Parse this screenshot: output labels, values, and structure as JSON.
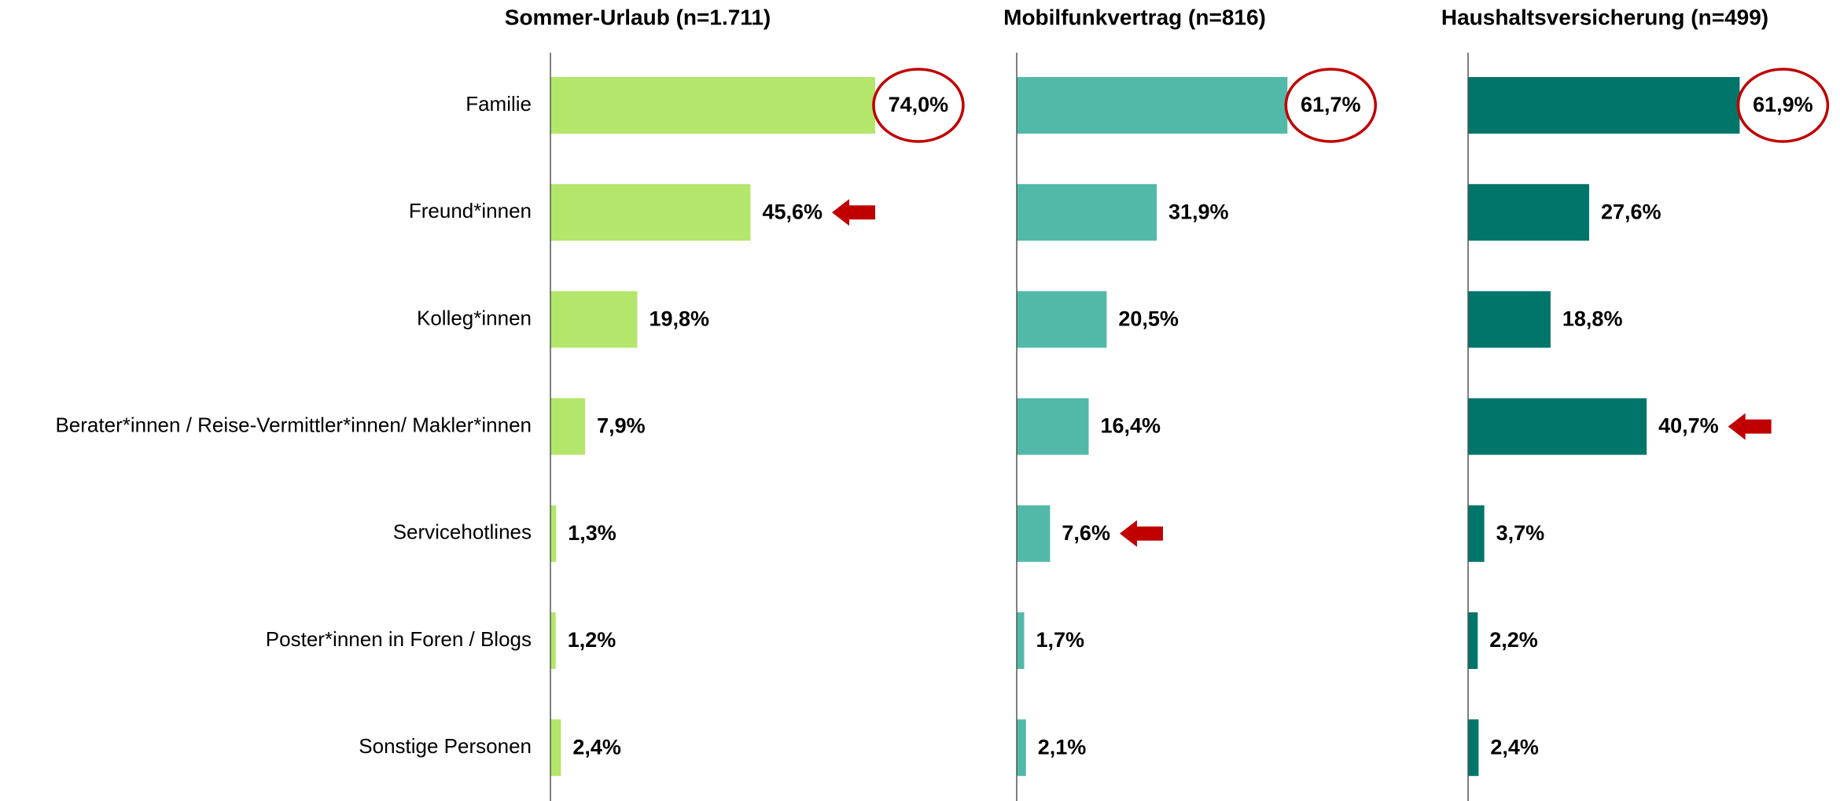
{
  "chart_data": [
    {
      "type": "hbar",
      "title": "Sommer-Urlaub (n=1.711)",
      "color": "#b3e66b",
      "categories": [
        "Familie",
        "Freund*innen",
        "Kolleg*innen",
        "Berater*innen / Reise-Vermittler*innen/ Makler*innen",
        "Servicehotlines",
        "Poster*innen in Foren / Blogs",
        "Sonstige Personen"
      ],
      "values": [
        74.0,
        45.6,
        19.8,
        7.9,
        1.3,
        1.2,
        2.4
      ],
      "value_labels": [
        "74,0%",
        "45,6%",
        "19,8%",
        "7,9%",
        "1,3%",
        "1,2%",
        "2,4%"
      ],
      "xlim": [
        0,
        100
      ],
      "circle_index": 0,
      "arrow_index": 1
    },
    {
      "type": "hbar",
      "title": "Mobilfunkvertrag (n=816)",
      "color": "#52b9a9",
      "values": [
        61.7,
        31.9,
        20.5,
        16.4,
        7.6,
        1.7,
        2.1
      ],
      "value_labels": [
        "61,7%",
        "31,9%",
        "20,5%",
        "16,4%",
        "7,6%",
        "1,7%",
        "2,1%"
      ],
      "xlim": [
        0,
        100
      ],
      "circle_index": 0,
      "arrow_index": 4
    },
    {
      "type": "hbar",
      "title": "Haushaltsversicherung (n=499)",
      "color": "#00756a",
      "values": [
        61.9,
        27.6,
        18.8,
        40.7,
        3.7,
        2.2,
        2.4
      ],
      "value_labels": [
        "61,9%",
        "27,6%",
        "18,8%",
        "40,7%",
        "3,7%",
        "2,2%",
        "2,4%"
      ],
      "xlim": [
        0,
        100
      ],
      "circle_index": 0,
      "arrow_index": 3
    }
  ]
}
